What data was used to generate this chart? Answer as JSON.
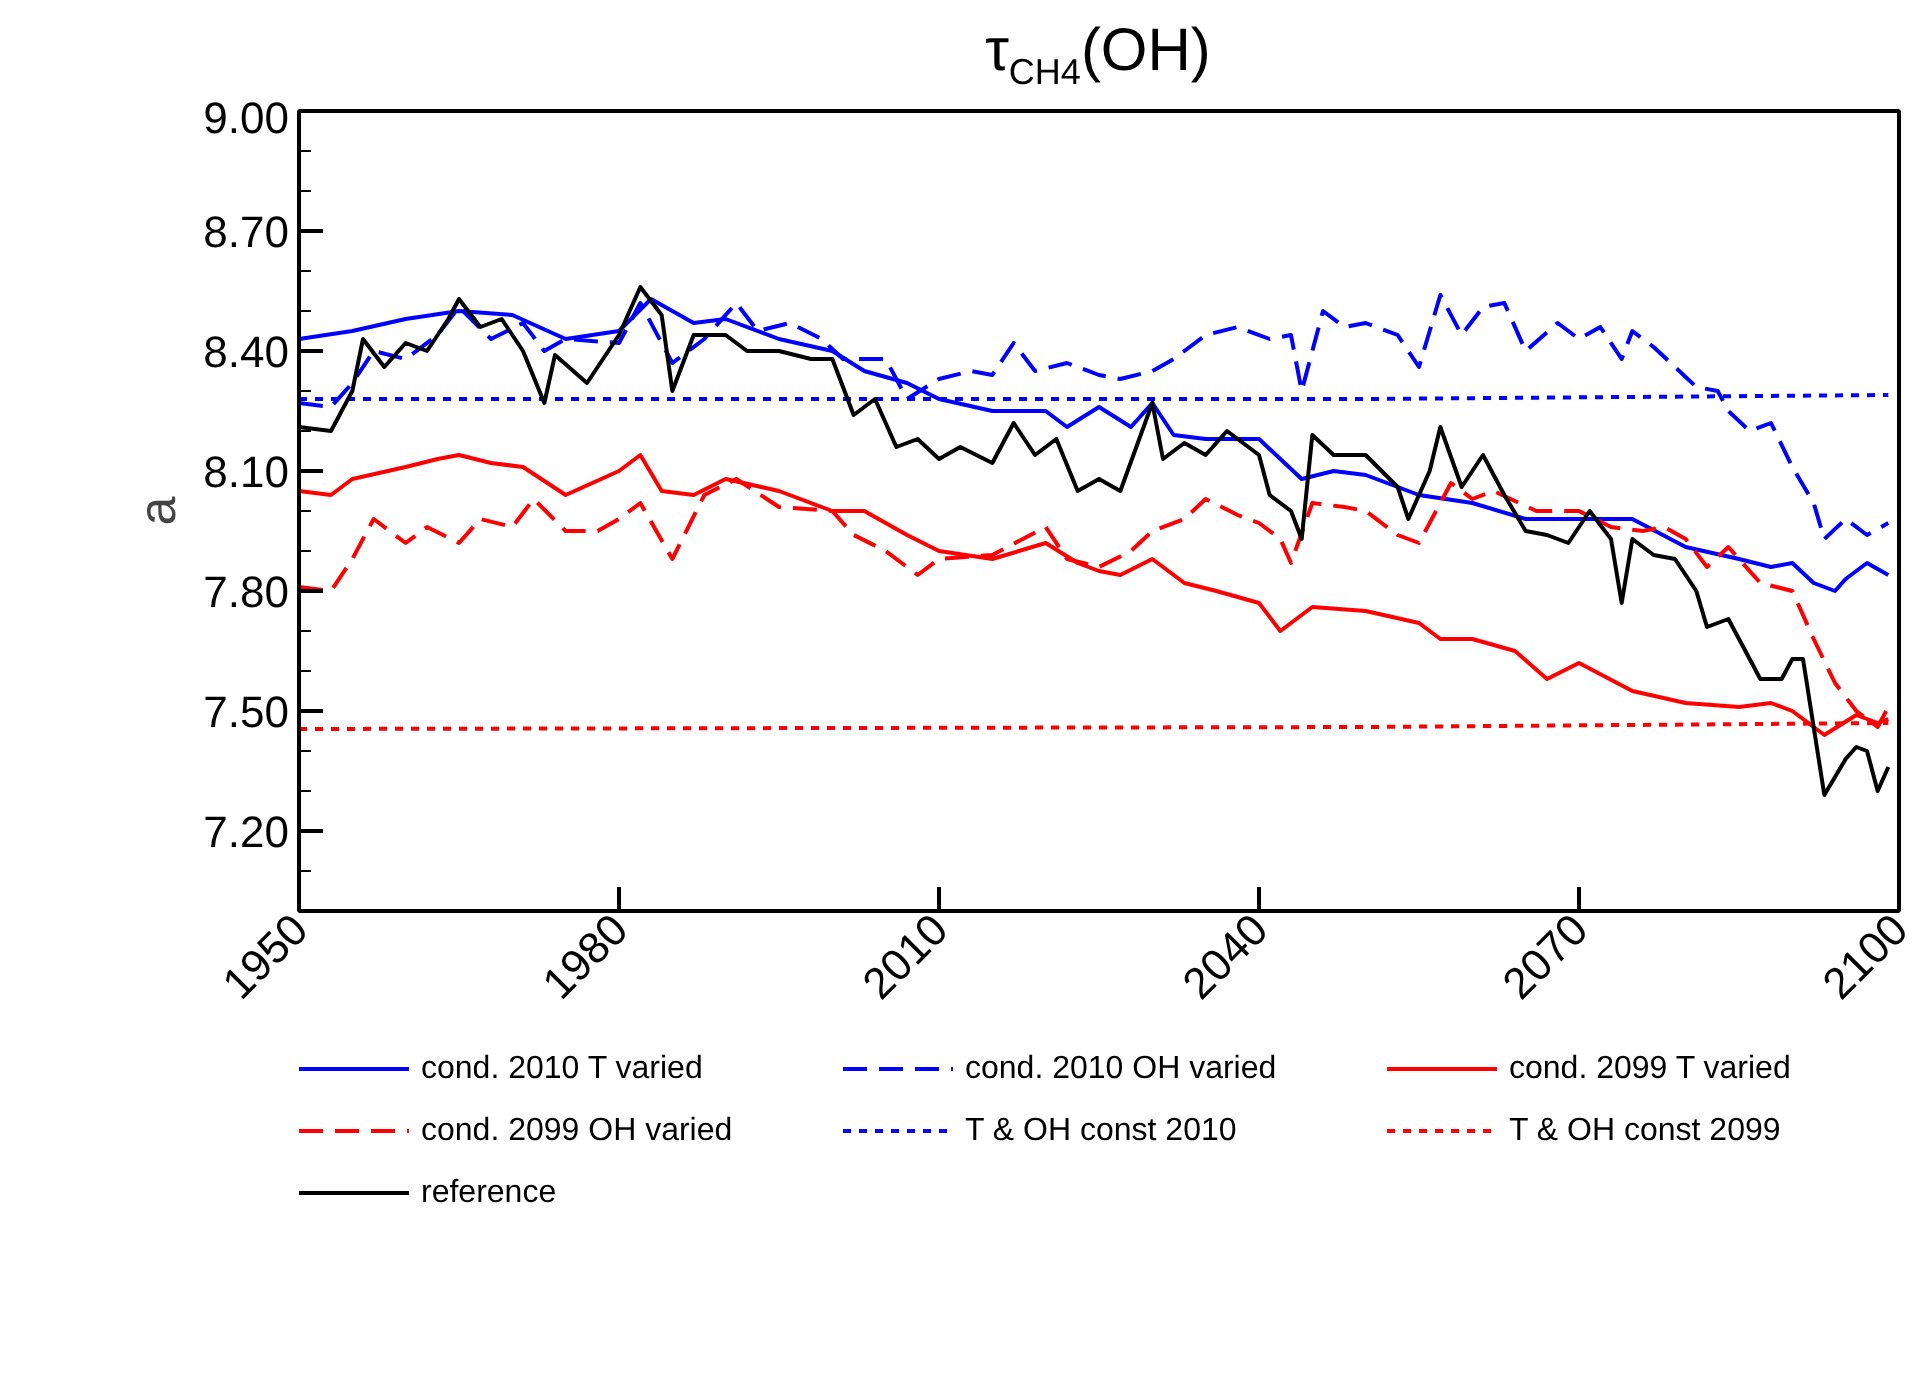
{
  "chart_data": {
    "type": "line",
    "title": "τ$_{CH4}$(OH)",
    "ylabel": "a",
    "xlim": [
      1950,
      2100
    ],
    "xticks": [
      1950,
      1980,
      2010,
      2040,
      2070,
      2100
    ],
    "ylim": [
      7.0,
      9.0
    ],
    "yticks": [
      {
        "value": 7.2,
        "label": "7.20"
      },
      {
        "value": 7.5,
        "label": "7.50"
      },
      {
        "value": 7.8,
        "label": "7.80"
      },
      {
        "value": 8.1,
        "label": "8.10"
      },
      {
        "value": 8.4,
        "label": "8.40"
      },
      {
        "value": 8.7,
        "label": "8.70"
      },
      {
        "value": 9.0,
        "label": "9.00"
      }
    ],
    "grid": false,
    "legend": "bottom",
    "series": [
      {
        "name": "cond. 2010 T varied",
        "color": "#0000ff",
        "line_style": "solid",
        "x": [
          1950,
          1955,
          1960,
          1965,
          1970,
          1975,
          1980,
          1983,
          1987,
          1990,
          1995,
          2000,
          2003,
          2007,
          2010,
          2015,
          2020,
          2022,
          2025,
          2028,
          2030,
          2032,
          2035,
          2040,
          2044,
          2047,
          2050,
          2055,
          2060,
          2065,
          2070,
          2075,
          2080,
          2085,
          2088,
          2090,
          2092,
          2094,
          2095,
          2097,
          2099
        ],
        "values": [
          8.43,
          8.45,
          8.48,
          8.5,
          8.49,
          8.43,
          8.45,
          8.53,
          8.47,
          8.48,
          8.43,
          8.4,
          8.35,
          8.32,
          8.28,
          8.25,
          8.25,
          8.21,
          8.26,
          8.21,
          8.27,
          8.19,
          8.18,
          8.18,
          8.08,
          8.1,
          8.09,
          8.04,
          8.02,
          7.98,
          7.98,
          7.98,
          7.91,
          7.88,
          7.86,
          7.87,
          7.82,
          7.8,
          7.83,
          7.87,
          7.84
        ]
      },
      {
        "name": "cond. 2010 OH varied",
        "color": "#0000ff",
        "line_style": "dashed",
        "x": [
          1950,
          1953,
          1955,
          1957,
          1960,
          1963,
          1965,
          1968,
          1971,
          1973,
          1975,
          1980,
          1982,
          1985,
          1988,
          1991,
          1993,
          1996,
          1999,
          2001,
          2005,
          2007,
          2010,
          2013,
          2015,
          2017,
          2019,
          2022,
          2025,
          2027,
          2030,
          2032,
          2035,
          2038,
          2041,
          2043,
          2044,
          2046,
          2048,
          2050,
          2053,
          2055,
          2057,
          2059,
          2061,
          2063,
          2065,
          2068,
          2070,
          2072,
          2074,
          2075,
          2077,
          2079,
          2081,
          2083,
          2084,
          2086,
          2088,
          2090,
          2092,
          2093,
          2095,
          2097,
          2099
        ],
        "values": [
          8.27,
          8.26,
          8.32,
          8.4,
          8.38,
          8.44,
          8.51,
          8.43,
          8.47,
          8.4,
          8.43,
          8.42,
          8.52,
          8.37,
          8.43,
          8.52,
          8.45,
          8.47,
          8.43,
          8.38,
          8.38,
          8.28,
          8.33,
          8.35,
          8.34,
          8.42,
          8.35,
          8.37,
          8.34,
          8.33,
          8.35,
          8.38,
          8.44,
          8.46,
          8.43,
          8.44,
          8.3,
          8.5,
          8.46,
          8.47,
          8.44,
          8.36,
          8.54,
          8.44,
          8.51,
          8.52,
          8.4,
          8.47,
          8.43,
          8.46,
          8.38,
          8.45,
          8.41,
          8.36,
          8.31,
          8.3,
          8.25,
          8.2,
          8.22,
          8.11,
          8.02,
          7.93,
          7.98,
          7.94,
          7.97
        ]
      },
      {
        "name": "cond. 2099 T varied",
        "color": "#ff0000",
        "line_style": "solid",
        "x": [
          1950,
          1953,
          1955,
          1960,
          1963,
          1965,
          1968,
          1971,
          1975,
          1980,
          1982,
          1984,
          1987,
          1990,
          1995,
          2000,
          2003,
          2007,
          2010,
          2015,
          2020,
          2023,
          2025,
          2027,
          2030,
          2033,
          2036,
          2040,
          2042,
          2045,
          2050,
          2055,
          2057,
          2060,
          2064,
          2067,
          2070,
          2075,
          2080,
          2085,
          2088,
          2090,
          2093,
          2096,
          2098,
          2099
        ],
        "values": [
          8.05,
          8.04,
          8.08,
          8.11,
          8.13,
          8.14,
          8.12,
          8.11,
          8.04,
          8.1,
          8.14,
          8.05,
          8.04,
          8.08,
          8.05,
          8.0,
          8.0,
          7.94,
          7.9,
          7.88,
          7.92,
          7.87,
          7.85,
          7.84,
          7.88,
          7.82,
          7.8,
          7.77,
          7.7,
          7.76,
          7.75,
          7.72,
          7.68,
          7.68,
          7.65,
          7.58,
          7.62,
          7.55,
          7.52,
          7.51,
          7.52,
          7.5,
          7.44,
          7.49,
          7.47,
          7.48
        ]
      },
      {
        "name": "cond. 2099 OH varied",
        "color": "#ff0000",
        "line_style": "dashed",
        "x": [
          1950,
          1953,
          1955,
          1957,
          1960,
          1962,
          1965,
          1967,
          1970,
          1972,
          1975,
          1978,
          1980,
          1982,
          1985,
          1988,
          1991,
          1995,
          2000,
          2002,
          2005,
          2008,
          2010,
          2015,
          2020,
          2022,
          2025,
          2028,
          2030,
          2033,
          2035,
          2038,
          2040,
          2042,
          2043,
          2045,
          2048,
          2050,
          2053,
          2055,
          2058,
          2060,
          2062,
          2066,
          2070,
          2073,
          2076,
          2078,
          2080,
          2082,
          2084,
          2087,
          2090,
          2092,
          2094,
          2096,
          2098,
          2099
        ],
        "values": [
          7.81,
          7.8,
          7.88,
          7.98,
          7.92,
          7.96,
          7.92,
          7.98,
          7.96,
          8.03,
          7.95,
          7.95,
          7.98,
          8.02,
          7.88,
          8.04,
          8.08,
          8.01,
          8.0,
          7.94,
          7.9,
          7.84,
          7.88,
          7.89,
          7.96,
          7.88,
          7.86,
          7.9,
          7.95,
          7.98,
          8.03,
          7.99,
          7.97,
          7.93,
          7.87,
          8.02,
          8.01,
          8.0,
          7.94,
          7.92,
          8.07,
          8.03,
          8.05,
          8.0,
          8.0,
          7.96,
          7.95,
          7.96,
          7.93,
          7.86,
          7.91,
          7.82,
          7.8,
          7.68,
          7.57,
          7.5,
          7.46,
          7.51
        ]
      },
      {
        "name": "T & OH const 2010",
        "color": "#0000ff",
        "line_style": "dotted",
        "x": [
          1950,
          2000,
          2050,
          2099
        ],
        "values": [
          8.28,
          8.28,
          8.28,
          8.29
        ]
      },
      {
        "name": "T & OH const 2099",
        "color": "#ff0000",
        "line_style": "dotted",
        "x": [
          1950,
          2050,
          2099
        ],
        "values": [
          7.455,
          7.46,
          7.47
        ]
      },
      {
        "name": "reference",
        "color": "#000000",
        "line_style": "solid",
        "x": [
          1950,
          1953,
          1955,
          1956,
          1958,
          1960,
          1962,
          1964,
          1965,
          1967,
          1969,
          1971,
          1973,
          1974,
          1977,
          1980,
          1982,
          1984,
          1985,
          1987,
          1990,
          1992,
          1995,
          1998,
          2000,
          2002,
          2004,
          2006,
          2008,
          2010,
          2012,
          2015,
          2017,
          2019,
          2021,
          2023,
          2025,
          2027,
          2030,
          2031,
          2033,
          2035,
          2037,
          2040,
          2041,
          2043,
          2044,
          2045,
          2047,
          2050,
          2053,
          2054,
          2056,
          2057,
          2059,
          2061,
          2063,
          2065,
          2067,
          2069,
          2071,
          2073,
          2074,
          2075,
          2077,
          2079,
          2081,
          2082,
          2084,
          2085,
          2087,
          2089,
          2090,
          2091,
          2093,
          2095,
          2096,
          2097,
          2098,
          2099
        ],
        "values": [
          8.21,
          8.2,
          8.3,
          8.43,
          8.36,
          8.42,
          8.4,
          8.48,
          8.53,
          8.46,
          8.48,
          8.4,
          8.27,
          8.39,
          8.32,
          8.44,
          8.56,
          8.49,
          8.3,
          8.44,
          8.44,
          8.4,
          8.4,
          8.38,
          8.38,
          8.24,
          8.28,
          8.16,
          8.18,
          8.13,
          8.16,
          8.12,
          8.22,
          8.14,
          8.18,
          8.05,
          8.08,
          8.05,
          8.27,
          8.13,
          8.17,
          8.14,
          8.2,
          8.14,
          8.04,
          8.0,
          7.93,
          8.19,
          8.14,
          8.14,
          8.06,
          7.98,
          8.1,
          8.21,
          8.06,
          8.14,
          8.04,
          7.95,
          7.94,
          7.92,
          8.0,
          7.93,
          7.77,
          7.93,
          7.89,
          7.88,
          7.8,
          7.71,
          7.73,
          7.68,
          7.58,
          7.58,
          7.63,
          7.63,
          7.29,
          7.38,
          7.41,
          7.4,
          7.3,
          7.36
        ]
      }
    ]
  }
}
